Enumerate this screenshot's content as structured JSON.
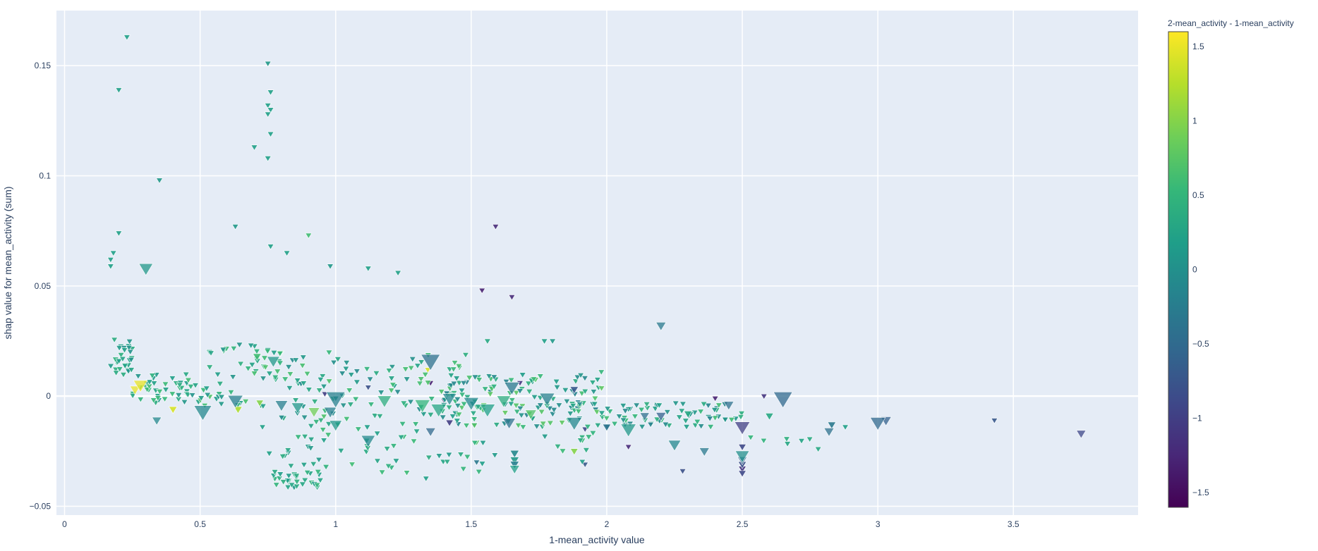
{
  "chart_data": {
    "type": "scatter",
    "marker": "triangle-down",
    "xlabel": "1-mean_activity value",
    "ylabel": "shap value for mean_activity (sum)",
    "xlim": [
      -0.03,
      3.96
    ],
    "ylim": [
      -0.054,
      0.175
    ],
    "x_ticks": [
      0,
      0.5,
      1,
      1.5,
      2,
      2.5,
      3,
      3.5
    ],
    "x_tick_labels": [
      "0",
      "0.5",
      "1",
      "1.5",
      "2",
      "2.5",
      "3",
      "3.5"
    ],
    "y_ticks": [
      -0.05,
      0,
      0.05,
      0.1,
      0.15
    ],
    "y_tick_labels": [
      "−0.05",
      "0",
      "0.05",
      "0.1",
      "0.15"
    ],
    "grid": true,
    "colorbar": {
      "title": "2-mean_activity - 1-mean_activity",
      "range": [
        -1.6,
        1.6
      ],
      "ticks": [
        1.5,
        1,
        0.5,
        0,
        -0.5,
        -1,
        -1.5
      ],
      "tick_labels": [
        "1.5",
        "1",
        "0.5",
        "0",
        "−0.5",
        "−1",
        "−1.5"
      ],
      "colorscale": [
        "#440154",
        "#482878",
        "#3e4989",
        "#31688e",
        "#26828e",
        "#1f9e89",
        "#35b779",
        "#6ece58",
        "#b5de2b",
        "#fde725"
      ]
    },
    "colors": {
      "plot_bg": "#e5ecf6",
      "grid": "#ffffff",
      "text": "#2a3f5f"
    },
    "points": [
      {
        "x": 0.23,
        "y": 0.163,
        "c": 0.2,
        "s": 1
      },
      {
        "x": 0.2,
        "y": 0.139,
        "c": 0.2,
        "s": 1
      },
      {
        "x": 0.35,
        "y": 0.098,
        "c": 0.1,
        "s": 1
      },
      {
        "x": 0.2,
        "y": 0.074,
        "c": 0.2,
        "s": 1
      },
      {
        "x": 0.18,
        "y": 0.065,
        "c": 0.2,
        "s": 1
      },
      {
        "x": 0.17,
        "y": 0.062,
        "c": 0.2,
        "s": 1
      },
      {
        "x": 0.17,
        "y": 0.059,
        "c": 0.2,
        "s": 1
      },
      {
        "x": 0.3,
        "y": 0.058,
        "c": 0.1,
        "s": 2.2
      },
      {
        "x": 0.75,
        "y": 0.151,
        "c": 0.1,
        "s": 1
      },
      {
        "x": 0.76,
        "y": 0.138,
        "c": 0.2,
        "s": 1
      },
      {
        "x": 0.75,
        "y": 0.132,
        "c": 0.2,
        "s": 1
      },
      {
        "x": 0.76,
        "y": 0.13,
        "c": 0.2,
        "s": 1
      },
      {
        "x": 0.75,
        "y": 0.128,
        "c": 0.2,
        "s": 1
      },
      {
        "x": 0.76,
        "y": 0.119,
        "c": 0.2,
        "s": 1
      },
      {
        "x": 0.7,
        "y": 0.113,
        "c": 0.2,
        "s": 1
      },
      {
        "x": 0.75,
        "y": 0.108,
        "c": 0.2,
        "s": 1
      },
      {
        "x": 0.63,
        "y": 0.077,
        "c": 0.1,
        "s": 1
      },
      {
        "x": 0.9,
        "y": 0.073,
        "c": 0.6,
        "s": 1
      },
      {
        "x": 0.76,
        "y": 0.068,
        "c": 0.2,
        "s": 1
      },
      {
        "x": 0.82,
        "y": 0.065,
        "c": 0.2,
        "s": 1
      },
      {
        "x": 0.98,
        "y": 0.059,
        "c": 0.1,
        "s": 1
      },
      {
        "x": 1.12,
        "y": 0.058,
        "c": 0.2,
        "s": 1
      },
      {
        "x": 1.23,
        "y": 0.056,
        "c": 0.2,
        "s": 1
      },
      {
        "x": 1.59,
        "y": 0.077,
        "c": -1.2,
        "s": 1
      },
      {
        "x": 1.54,
        "y": 0.048,
        "c": -1.3,
        "s": 1
      },
      {
        "x": 1.65,
        "y": 0.045,
        "c": -1.2,
        "s": 1
      },
      {
        "x": 2.2,
        "y": 0.032,
        "c": -0.3,
        "s": 1.6
      },
      {
        "x": 1.77,
        "y": 0.025,
        "c": 0.2,
        "s": 1
      },
      {
        "x": 1.8,
        "y": 0.025,
        "c": 0.1,
        "s": 1
      },
      {
        "x": 1.35,
        "y": 0.016,
        "c": -0.4,
        "s": 3
      },
      {
        "x": 1.34,
        "y": 0.012,
        "c": 1.4,
        "s": 1
      },
      {
        "x": 1.56,
        "y": 0.025,
        "c": 0.3,
        "s": 1
      },
      {
        "x": 1.98,
        "y": 0.011,
        "c": 0.5,
        "s": 1
      },
      {
        "x": 0.77,
        "y": 0.016,
        "c": 0.1,
        "s": 2
      },
      {
        "x": 0.75,
        "y": 0.021,
        "c": 0.1,
        "s": 1
      },
      {
        "x": 0.71,
        "y": 0.018,
        "c": 0.6,
        "s": 1.3
      },
      {
        "x": 0.28,
        "y": 0.005,
        "c": 1.5,
        "s": 2.2
      },
      {
        "x": 0.26,
        "y": 0.003,
        "c": 1.5,
        "s": 1.6
      },
      {
        "x": 0.4,
        "y": -0.006,
        "c": 1.4,
        "s": 1.3
      },
      {
        "x": 0.34,
        "y": -0.011,
        "c": -0.1,
        "s": 1.5
      },
      {
        "x": 0.51,
        "y": -0.007,
        "c": -0.1,
        "s": 2.8
      },
      {
        "x": 0.63,
        "y": -0.002,
        "c": -0.2,
        "s": 2.4
      },
      {
        "x": 0.64,
        "y": -0.006,
        "c": 1.2,
        "s": 1.3
      },
      {
        "x": 0.72,
        "y": -0.003,
        "c": 1.0,
        "s": 1.2
      },
      {
        "x": 0.73,
        "y": -0.014,
        "c": 0.2,
        "s": 1
      },
      {
        "x": 0.8,
        "y": -0.004,
        "c": -0.2,
        "s": 2
      },
      {
        "x": 0.86,
        "y": -0.005,
        "c": 0.1,
        "s": 2
      },
      {
        "x": 0.92,
        "y": -0.007,
        "c": 0.9,
        "s": 1.8
      },
      {
        "x": 1.0,
        "y": -0.001,
        "c": -0.2,
        "s": 3
      },
      {
        "x": 0.98,
        "y": -0.007,
        "c": -0.2,
        "s": 2
      },
      {
        "x": 1.0,
        "y": -0.013,
        "c": 0.1,
        "s": 2
      },
      {
        "x": 1.12,
        "y": -0.02,
        "c": -0.1,
        "s": 2.2
      },
      {
        "x": 1.18,
        "y": -0.002,
        "c": 0.4,
        "s": 2.2
      },
      {
        "x": 1.32,
        "y": -0.004,
        "c": 0.5,
        "s": 2.4
      },
      {
        "x": 1.38,
        "y": -0.006,
        "c": 0.3,
        "s": 2.4
      },
      {
        "x": 1.42,
        "y": -0.001,
        "c": -0.1,
        "s": 2.2
      },
      {
        "x": 1.5,
        "y": -0.003,
        "c": -0.1,
        "s": 2.4
      },
      {
        "x": 1.56,
        "y": -0.006,
        "c": 0.2,
        "s": 2.4
      },
      {
        "x": 1.62,
        "y": -0.002,
        "c": 0.4,
        "s": 2.2
      },
      {
        "x": 1.65,
        "y": 0.004,
        "c": -0.3,
        "s": 2.4
      },
      {
        "x": 1.72,
        "y": -0.008,
        "c": 0.7,
        "s": 1.8
      },
      {
        "x": 1.78,
        "y": -0.001,
        "c": -0.2,
        "s": 2.4
      },
      {
        "x": 1.88,
        "y": -0.012,
        "c": -0.1,
        "s": 2.4
      },
      {
        "x": 2.08,
        "y": -0.015,
        "c": 0.1,
        "s": 2.4
      },
      {
        "x": 2.0,
        "y": -0.014,
        "c": -0.4,
        "s": 1.3
      },
      {
        "x": 2.25,
        "y": -0.022,
        "c": -0.1,
        "s": 2
      },
      {
        "x": 2.36,
        "y": -0.025,
        "c": -0.3,
        "s": 1.6
      },
      {
        "x": 2.45,
        "y": -0.004,
        "c": -0.4,
        "s": 1.6
      },
      {
        "x": 2.5,
        "y": -0.014,
        "c": -1.0,
        "s": 2.4
      },
      {
        "x": 2.5,
        "y": -0.023,
        "c": -0.9,
        "s": 1.2
      },
      {
        "x": 2.5,
        "y": -0.027,
        "c": 0.0,
        "s": 2.2
      },
      {
        "x": 2.5,
        "y": -0.029,
        "c": -0.5,
        "s": 1.5
      },
      {
        "x": 2.5,
        "y": -0.031,
        "c": -0.8,
        "s": 1.3
      },
      {
        "x": 2.5,
        "y": -0.033,
        "c": -1.1,
        "s": 1.2
      },
      {
        "x": 2.5,
        "y": -0.035,
        "c": -0.9,
        "s": 1.2
      },
      {
        "x": 2.65,
        "y": -0.001,
        "c": -0.5,
        "s": 3
      },
      {
        "x": 2.6,
        "y": -0.009,
        "c": 0.3,
        "s": 1.3
      },
      {
        "x": 2.82,
        "y": -0.016,
        "c": -0.4,
        "s": 1.6
      },
      {
        "x": 2.83,
        "y": -0.013,
        "c": -0.3,
        "s": 1.3
      },
      {
        "x": 3.0,
        "y": -0.012,
        "c": -0.5,
        "s": 2.4
      },
      {
        "x": 3.03,
        "y": -0.011,
        "c": -0.6,
        "s": 1.7
      },
      {
        "x": 3.43,
        "y": -0.011,
        "c": -0.7,
        "s": 1
      },
      {
        "x": 3.75,
        "y": -0.017,
        "c": -0.9,
        "s": 1.5
      },
      {
        "x": 1.66,
        "y": -0.026,
        "c": -0.1,
        "s": 1.4
      },
      {
        "x": 1.66,
        "y": -0.029,
        "c": 0.1,
        "s": 1.4
      },
      {
        "x": 1.66,
        "y": -0.031,
        "c": -0.2,
        "s": 1.4
      },
      {
        "x": 1.66,
        "y": -0.033,
        "c": 0.2,
        "s": 1.6
      },
      {
        "x": 1.35,
        "y": -0.016,
        "c": -0.5,
        "s": 1.6
      },
      {
        "x": 1.52,
        "y": -0.03,
        "c": -0.3,
        "s": 1
      },
      {
        "x": 1.52,
        "y": -0.021,
        "c": 0.7,
        "s": 1
      },
      {
        "x": 1.88,
        "y": -0.025,
        "c": 1.0,
        "s": 1.2
      },
      {
        "x": 1.92,
        "y": -0.031,
        "c": -0.7,
        "s": 1
      },
      {
        "x": 2.28,
        "y": -0.034,
        "c": -0.8,
        "s": 1
      },
      {
        "x": 2.78,
        "y": -0.024,
        "c": 0.3,
        "s": 1
      },
      {
        "x": 2.88,
        "y": -0.014,
        "c": 0.2,
        "s": 1
      },
      {
        "x": 2.58,
        "y": 0.0,
        "c": -1.1,
        "s": 1
      },
      {
        "x": 2.3,
        "y": -0.008,
        "c": 0.3,
        "s": 1.3
      },
      {
        "x": 2.2,
        "y": -0.009,
        "c": -0.6,
        "s": 1.6
      },
      {
        "x": 2.14,
        "y": -0.009,
        "c": -0.4,
        "s": 1.5
      },
      {
        "x": 1.88,
        "y": 0.003,
        "c": -0.7,
        "s": 1.3
      },
      {
        "x": 1.42,
        "y": -0.012,
        "c": -1.0,
        "s": 1.2
      },
      {
        "x": 1.4,
        "y": -0.002,
        "c": -1.2,
        "s": 1
      },
      {
        "x": 1.12,
        "y": 0.004,
        "c": -0.8,
        "s": 1
      },
      {
        "x": 0.96,
        "y": 0.001,
        "c": -1.0,
        "s": 1
      },
      {
        "x": 1.92,
        "y": -0.015,
        "c": -0.9,
        "s": 1
      },
      {
        "x": 1.68,
        "y": 0.006,
        "c": -1.1,
        "s": 1
      },
      {
        "x": 2.4,
        "y": -0.001,
        "c": -1.3,
        "s": 1
      },
      {
        "x": 2.08,
        "y": -0.023,
        "c": -1.2,
        "s": 1
      },
      {
        "x": 1.35,
        "y": 0.006,
        "c": -1.3,
        "s": 1
      },
      {
        "x": 1.64,
        "y": -0.012,
        "c": -0.4,
        "s": 2
      }
    ],
    "clusters": [
      {
        "x": [
          0.17,
          0.25
        ],
        "y": [
          0.008,
          0.028
        ],
        "n": 30,
        "c": [
          0.0,
          0.5
        ],
        "s": 1
      },
      {
        "x": [
          0.25,
          0.5
        ],
        "y": [
          -0.003,
          0.01
        ],
        "n": 45,
        "c": [
          0.0,
          0.6
        ],
        "s": 1
      },
      {
        "x": [
          0.5,
          0.8
        ],
        "y": [
          -0.005,
          0.026
        ],
        "n": 55,
        "c": [
          0.0,
          0.7
        ],
        "s": 1
      },
      {
        "x": [
          0.77,
          0.95
        ],
        "y": [
          -0.042,
          -0.034
        ],
        "n": 30,
        "c": [
          0.1,
          0.5
        ],
        "s": 1
      },
      {
        "x": [
          0.75,
          0.95
        ],
        "y": [
          -0.031,
          -0.017
        ],
        "n": 8,
        "c": [
          0.1,
          0.4
        ],
        "s": 1
      },
      {
        "x": [
          0.8,
          1.3
        ],
        "y": [
          -0.035,
          -0.01
        ],
        "n": 40,
        "c": [
          0.1,
          0.6
        ],
        "s": 1
      },
      {
        "x": [
          0.8,
          1.5
        ],
        "y": [
          -0.01,
          0.02
        ],
        "n": 95,
        "c": [
          -0.1,
          0.7
        ],
        "s": 1
      },
      {
        "x": [
          1.3,
          1.6
        ],
        "y": [
          -0.038,
          -0.02
        ],
        "n": 14,
        "c": [
          0.1,
          0.5
        ],
        "s": 1
      },
      {
        "x": [
          1.4,
          2.0
        ],
        "y": [
          -0.014,
          0.01
        ],
        "n": 140,
        "c": [
          -0.2,
          0.8
        ],
        "s": 1
      },
      {
        "x": [
          1.7,
          2.0
        ],
        "y": [
          -0.03,
          -0.015
        ],
        "n": 10,
        "c": [
          0.1,
          0.6
        ],
        "s": 1
      },
      {
        "x": [
          2.0,
          2.5
        ],
        "y": [
          -0.014,
          -0.003
        ],
        "n": 65,
        "c": [
          -0.2,
          0.6
        ],
        "s": 1
      },
      {
        "x": [
          2.5,
          2.75
        ],
        "y": [
          -0.022,
          -0.018
        ],
        "n": 6,
        "c": [
          0.2,
          0.5
        ],
        "s": 1
      }
    ]
  }
}
